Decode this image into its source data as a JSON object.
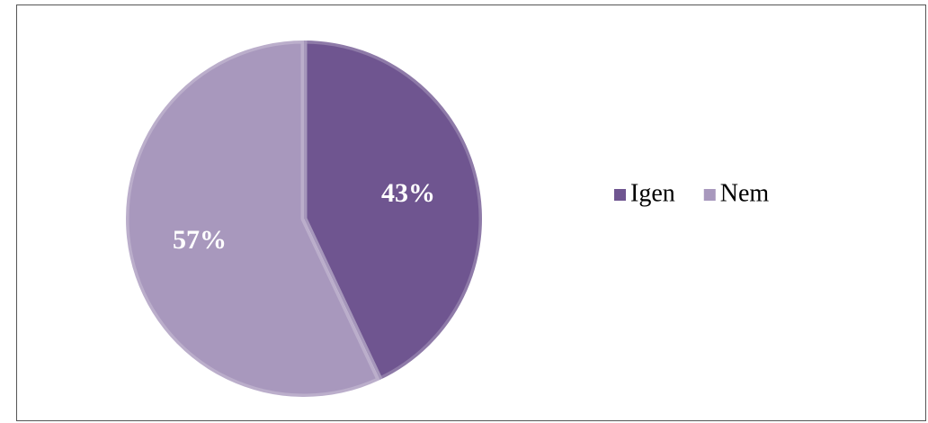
{
  "chart_data": {
    "type": "pie",
    "categories": [
      "Igen",
      "Nem"
    ],
    "values": [
      43,
      57
    ],
    "value_labels": [
      "43%",
      "57%"
    ],
    "colors": [
      "#6f5590",
      "#a898bd"
    ]
  }
}
